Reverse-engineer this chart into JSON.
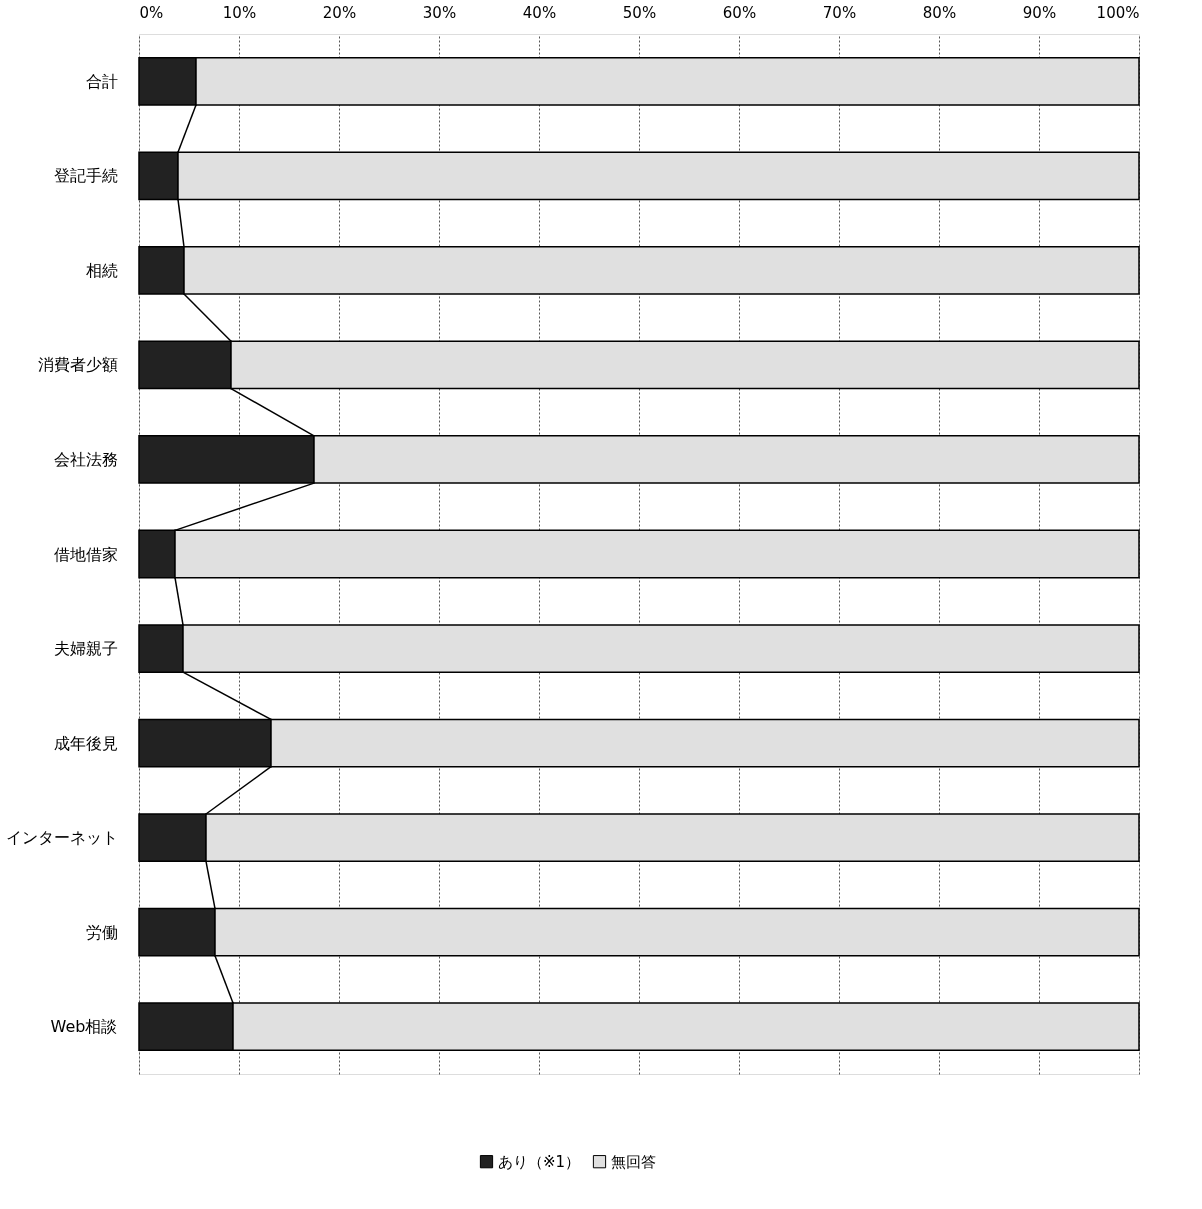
{
  "chart_data": {
    "type": "bar",
    "orientation": "horizontal",
    "stacked": true,
    "categories": [
      "合計",
      "登記手続",
      "相続",
      "消費者少額",
      "会社法務",
      "借地借家",
      "夫婦親子",
      "成年後見",
      "インターネット",
      "労働",
      "Web相談"
    ],
    "series": [
      {
        "name": "あり（※1）",
        "color": "#222222",
        "values": [
          5.7,
          3.9,
          4.5,
          9.2,
          17.5,
          3.6,
          4.4,
          13.2,
          6.7,
          7.6,
          9.4
        ]
      },
      {
        "name": "無回答",
        "color": "#e0e0e0",
        "values": [
          94.3,
          96.1,
          95.5,
          90.8,
          82.5,
          96.4,
          95.6,
          86.8,
          93.3,
          92.4,
          90.6
        ]
      }
    ],
    "xlim": [
      0,
      100
    ],
    "xticks": [
      {
        "value": 0,
        "label": "0%"
      },
      {
        "value": 10,
        "label": "10%"
      },
      {
        "value": 20,
        "label": "20%"
      },
      {
        "value": 30,
        "label": "30%"
      },
      {
        "value": 40,
        "label": "40%"
      },
      {
        "value": 50,
        "label": "50%"
      },
      {
        "value": 60,
        "label": "60%"
      },
      {
        "value": 70,
        "label": "70%"
      },
      {
        "value": 80,
        "label": "80%"
      },
      {
        "value": 90,
        "label": "90%"
      },
      {
        "value": 100,
        "label": "100%"
      }
    ],
    "grid": "x",
    "legend": "bottom"
  }
}
